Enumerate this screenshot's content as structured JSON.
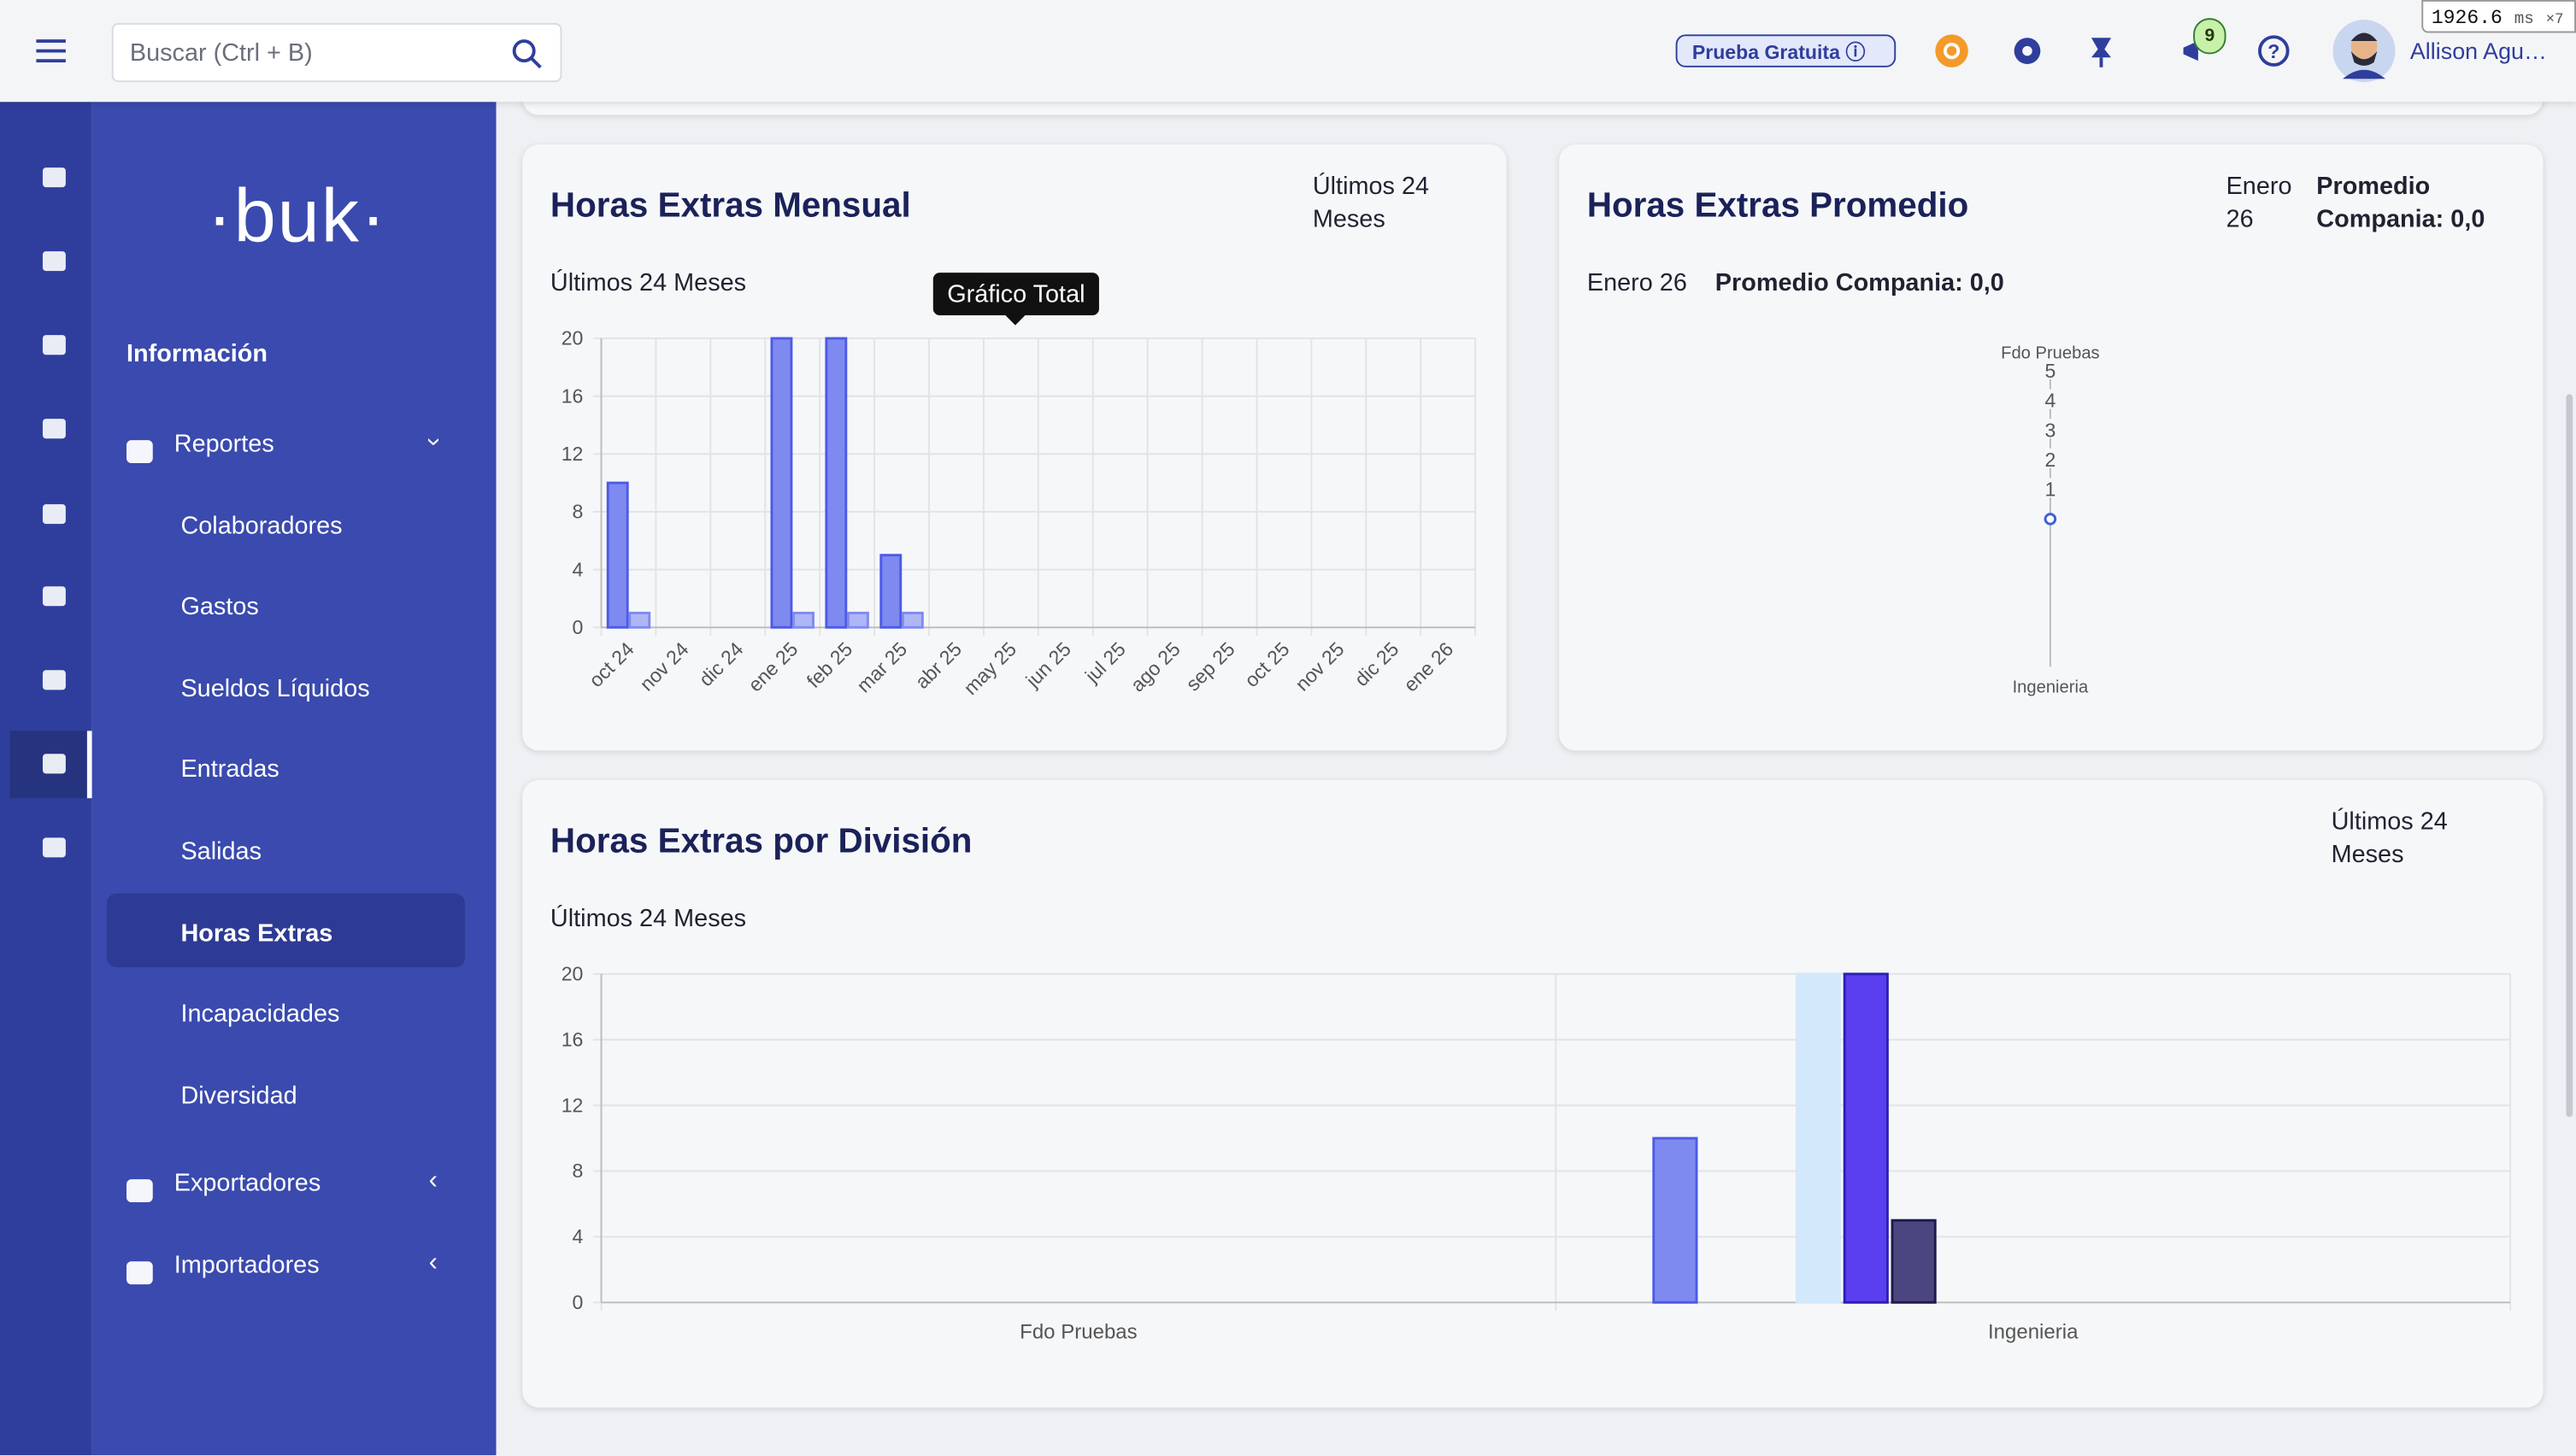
{
  "header": {
    "search_placeholder": "Buscar (Ctrl + B)",
    "trial": "Prueba Gratuita",
    "notifications": "9",
    "user": "Allison Agu…",
    "perf": {
      "value": "1926.6",
      "unit": "ms",
      "count": "×7"
    }
  },
  "sidebar": {
    "logo": "·buk·",
    "section": "Información",
    "menu": [
      {
        "label": "Reportes",
        "items": [
          {
            "label": "Colaboradores"
          },
          {
            "label": "Gastos"
          },
          {
            "label": "Sueldos Líquidos"
          },
          {
            "label": "Entradas"
          },
          {
            "label": "Salidas"
          },
          {
            "label": "Horas Extras",
            "active": true
          },
          {
            "label": "Incapacidades"
          },
          {
            "label": "Diversidad"
          }
        ]
      },
      {
        "label": "Exportadores"
      },
      {
        "label": "Importadores"
      }
    ]
  },
  "chart_data": [
    {
      "type": "bar",
      "title": "Horas Extras Mensual",
      "period": "Últimos 24 Meses",
      "annotation": "Gráfico Total",
      "categories": [
        "oct 24",
        "nov 24",
        "dic 24",
        "ene 25",
        "feb 25",
        "mar 25",
        "abr 25",
        "may 25",
        "jun 25",
        "jul 25",
        "ago 25",
        "sep 25",
        "oct 25",
        "nov 25",
        "dic 25",
        "ene 26"
      ],
      "series": [
        {
          "color": "#7f8af0",
          "border": "#4c5ae6",
          "values": [
            10,
            0,
            0,
            20,
            20,
            5,
            0,
            0,
            0,
            0,
            0,
            0,
            0,
            0,
            0,
            0
          ]
        },
        {
          "color": "#aeb6f5",
          "border": "#7f8af0",
          "values": [
            1,
            0,
            0,
            1,
            1,
            1,
            0,
            0,
            0,
            0,
            0,
            0,
            0,
            0,
            0,
            0
          ]
        }
      ],
      "ylim": [
        0,
        20
      ],
      "yticks": [
        0,
        4,
        8,
        12,
        16,
        20
      ],
      "grid": true
    },
    {
      "type": "radar",
      "title": "Horas Extras Promedio",
      "period": "Enero 26",
      "summary": "Promedio Compania: 0,0",
      "categories": [
        "Fdo Pruebas",
        "Ingenieria"
      ],
      "values": [
        0,
        0
      ],
      "color": "#3f5fd8",
      "ylim": [
        0,
        5
      ],
      "yticks": [
        1,
        2,
        3,
        4,
        5
      ]
    },
    {
      "type": "bar",
      "title": "Horas Extras por División",
      "period": "Últimos 24 Meses",
      "categories": [
        "Fdo Pruebas",
        "Ingenieria"
      ],
      "series": [
        {
          "color": "#7f8af0",
          "border": "#4c5ae6",
          "values": [
            0,
            10
          ]
        },
        {
          "color": "#9aa3f3",
          "border": "#6b76e8",
          "values": [
            0,
            0
          ]
        },
        {
          "color": "#9aa3f3",
          "border": "#6b76e8",
          "values": [
            0,
            0
          ]
        },
        {
          "color": "#d4e8fb",
          "border": "#d4e8fb",
          "values": [
            0,
            20
          ]
        },
        {
          "color": "#5a3ff0",
          "border": "#2a1fb0",
          "values": [
            0,
            20
          ]
        },
        {
          "color": "#4b4680",
          "border": "#1e1b4b",
          "values": [
            0,
            5
          ]
        },
        {
          "color": "#9aa3f3",
          "border": "#6b76e8",
          "values": [
            0,
            0
          ]
        },
        {
          "color": "#9aa3f3",
          "border": "#6b76e8",
          "values": [
            0,
            0
          ]
        },
        {
          "color": "#9aa3f3",
          "border": "#6b76e8",
          "values": [
            0,
            0
          ]
        },
        {
          "color": "#9aa3f3",
          "border": "#6b76e8",
          "values": [
            0,
            0
          ]
        },
        {
          "color": "#9aa3f3",
          "border": "#6b76e8",
          "values": [
            0,
            0
          ]
        },
        {
          "color": "#9aa3f3",
          "border": "#6b76e8",
          "values": [
            0,
            0
          ]
        },
        {
          "color": "#9aa3f3",
          "border": "#6b76e8",
          "values": [
            0,
            0
          ]
        },
        {
          "color": "#9aa3f3",
          "border": "#6b76e8",
          "values": [
            0,
            0
          ]
        },
        {
          "color": "#9aa3f3",
          "border": "#6b76e8",
          "values": [
            0,
            0
          ]
        },
        {
          "color": "#9aa3f3",
          "border": "#6b76e8",
          "values": [
            0,
            0
          ]
        }
      ],
      "ylim": [
        0,
        20
      ],
      "yticks": [
        0,
        4,
        8,
        12,
        16,
        20
      ],
      "grid": true
    }
  ]
}
